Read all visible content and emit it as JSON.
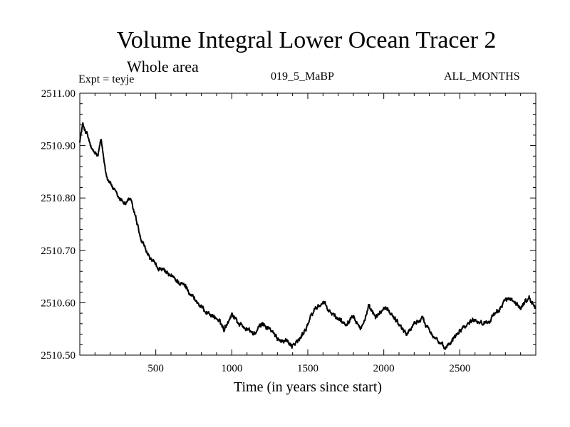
{
  "chart_data": {
    "type": "line",
    "title": "Volume Integral Lower Ocean Tracer 2",
    "subtitle": "Whole area",
    "experiment_label": "Expt = teyje",
    "run_label": "019_5_MaBP",
    "season_label": "ALL_MONTHS",
    "xlabel": "Time (in years since start)",
    "ylabel": "",
    "xlim": [
      0,
      3000
    ],
    "ylim": [
      2510.5,
      2511.0
    ],
    "xticks": [
      500,
      1000,
      1500,
      2000,
      2500
    ],
    "xtick_labels": [
      "500",
      "1000",
      "1500",
      "2000",
      "2500"
    ],
    "yticks": [
      2510.5,
      2510.6,
      2510.7,
      2510.8,
      2510.9,
      2511.0
    ],
    "ytick_labels": [
      "2510.50",
      "2510.60",
      "2510.70",
      "2510.80",
      "2510.90",
      "2511.00"
    ],
    "series": [
      {
        "name": "Volume Integral Lower Ocean Tracer 2",
        "color": "#000000",
        "noise_amplitude": 0.006,
        "x": [
          0,
          20,
          50,
          80,
          120,
          140,
          160,
          180,
          200,
          250,
          300,
          330,
          360,
          400,
          450,
          500,
          550,
          600,
          650,
          700,
          750,
          800,
          850,
          900,
          950,
          1000,
          1050,
          1100,
          1150,
          1200,
          1250,
          1300,
          1350,
          1400,
          1450,
          1500,
          1550,
          1600,
          1650,
          1700,
          1750,
          1800,
          1850,
          1900,
          1950,
          2000,
          2050,
          2100,
          2150,
          2200,
          2250,
          2300,
          2350,
          2400,
          2450,
          2500,
          2550,
          2600,
          2650,
          2700,
          2750,
          2800,
          2850,
          2900,
          2950,
          3000
        ],
        "values": [
          2510.91,
          2510.94,
          2510.92,
          2510.89,
          2510.88,
          2510.91,
          2510.87,
          2510.84,
          2510.83,
          2510.8,
          2510.79,
          2510.8,
          2510.77,
          2510.72,
          2510.69,
          2510.67,
          2510.66,
          2510.65,
          2510.64,
          2510.63,
          2510.61,
          2510.59,
          2510.58,
          2510.57,
          2510.55,
          2510.58,
          2510.56,
          2510.55,
          2510.54,
          2510.56,
          2510.55,
          2510.53,
          2510.53,
          2510.52,
          2510.53,
          2510.56,
          2510.59,
          2510.6,
          2510.58,
          2510.57,
          2510.56,
          2510.58,
          2510.55,
          2510.59,
          2510.57,
          2510.59,
          2510.58,
          2510.56,
          2510.54,
          2510.56,
          2510.57,
          2510.55,
          2510.53,
          2510.51,
          2510.53,
          2510.55,
          2510.56,
          2510.57,
          2510.56,
          2510.57,
          2510.58,
          2510.61,
          2510.6,
          2510.59,
          2510.61,
          2510.59
        ]
      }
    ]
  }
}
